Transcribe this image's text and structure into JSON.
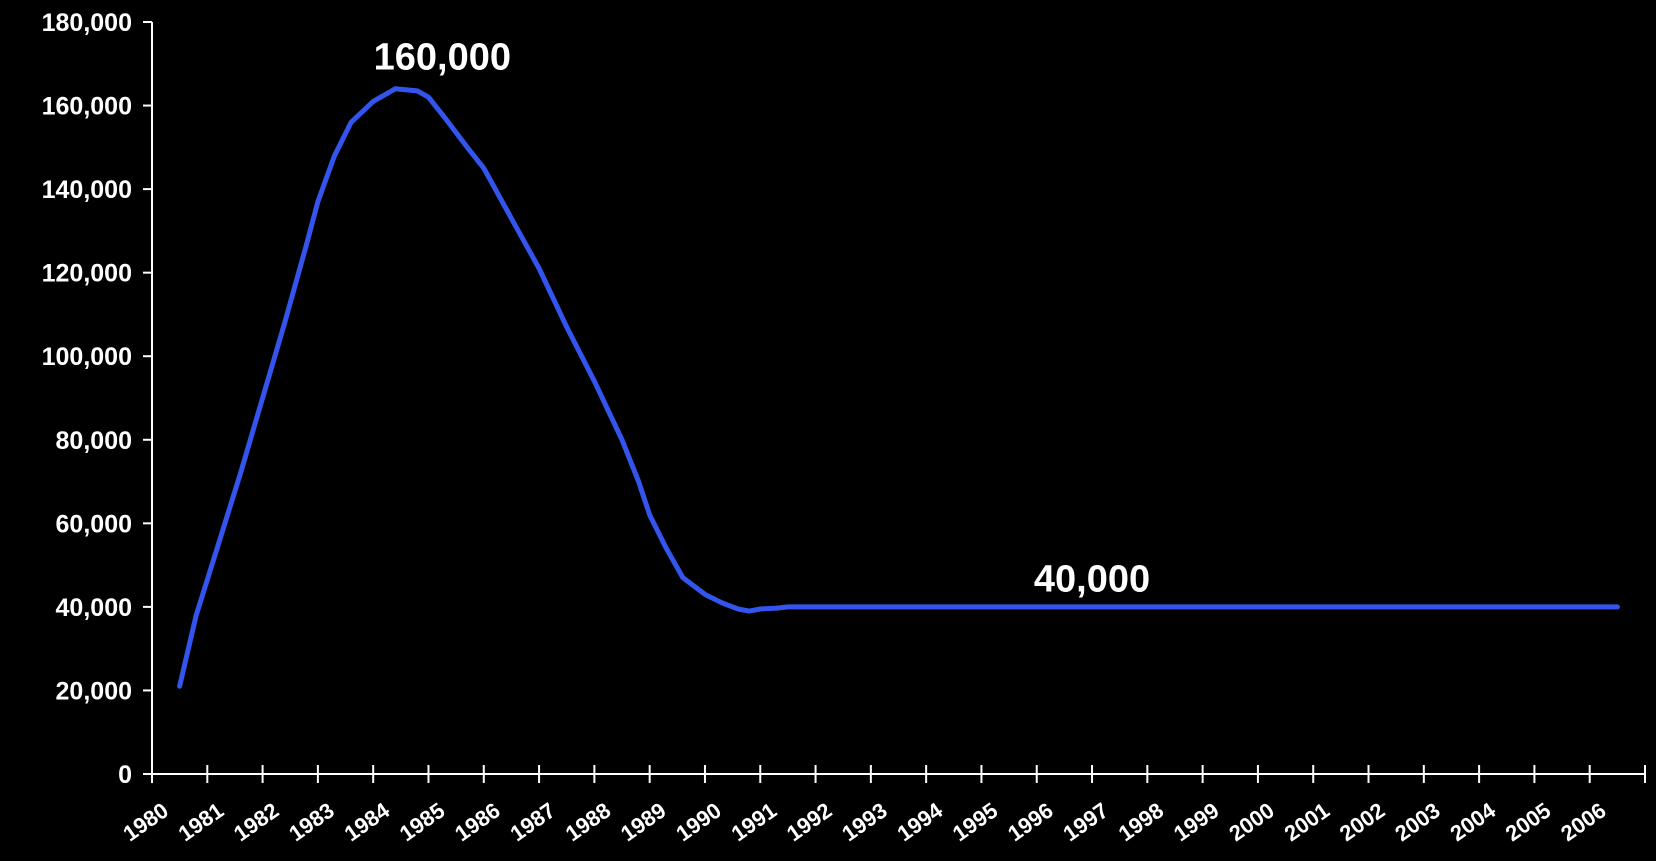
{
  "chart_data": {
    "type": "line",
    "title": "",
    "xlabel": "",
    "ylabel": "",
    "ylim": [
      0,
      180000
    ],
    "y_ticks": [
      0,
      20000,
      40000,
      60000,
      80000,
      100000,
      120000,
      140000,
      160000,
      180000
    ],
    "y_tick_labels": [
      "0",
      "20,000",
      "40,000",
      "60,000",
      "80,000",
      "100,000",
      "120,000",
      "140,000",
      "160,000",
      "180,000"
    ],
    "categories": [
      "1980",
      "1981",
      "1982",
      "1983",
      "1984",
      "1985",
      "1986",
      "1987",
      "1988",
      "1989",
      "1990",
      "1991",
      "1992",
      "1993",
      "1994",
      "1995",
      "1996",
      "1997",
      "1998",
      "1999",
      "2000",
      "2001",
      "2002",
      "2003",
      "2004",
      "2005",
      "2006"
    ],
    "grid": false,
    "line_color": "#3355ee",
    "background_color": "#000000",
    "series": [
      {
        "x": [
          1980.5,
          1980.8,
          1981.2,
          1981.6,
          1982.0,
          1982.4,
          1982.8,
          1983.0,
          1983.3,
          1983.6,
          1984.0,
          1984.4,
          1984.8,
          1985.0,
          1985.3,
          1985.7,
          1986.0,
          1986.5,
          1987.0,
          1987.5,
          1988.0,
          1988.5,
          1988.8,
          1989.0,
          1989.3,
          1989.6,
          1990.0,
          1990.3,
          1990.6,
          1990.8,
          1991.0,
          1991.3,
          1991.5,
          1992.0,
          1993.0,
          1994.0,
          1995.0,
          1996.0,
          1997.0,
          1998.0,
          1999.0,
          2000.0,
          2001.0,
          2002.0,
          2003.0,
          2004.0,
          2005.0,
          2006.0,
          2006.5
        ],
        "values": [
          21000,
          38000,
          55000,
          72000,
          90000,
          108000,
          127000,
          137000,
          148000,
          156000,
          161000,
          164000,
          163500,
          162000,
          157000,
          150000,
          145000,
          133000,
          121000,
          107000,
          94000,
          80000,
          70000,
          62000,
          54000,
          47000,
          43000,
          41000,
          39500,
          39000,
          39500,
          39700,
          40000,
          40000,
          40000,
          40000,
          40000,
          40000,
          40000,
          40000,
          40000,
          40000,
          40000,
          40000,
          40000,
          40000,
          40000,
          40000,
          40000
        ]
      }
    ],
    "annotations": [
      {
        "text": "160,000",
        "x": 1985.25,
        "y": 172000
      },
      {
        "text": "40,000",
        "x": 1997.0,
        "y": 47000
      }
    ]
  }
}
